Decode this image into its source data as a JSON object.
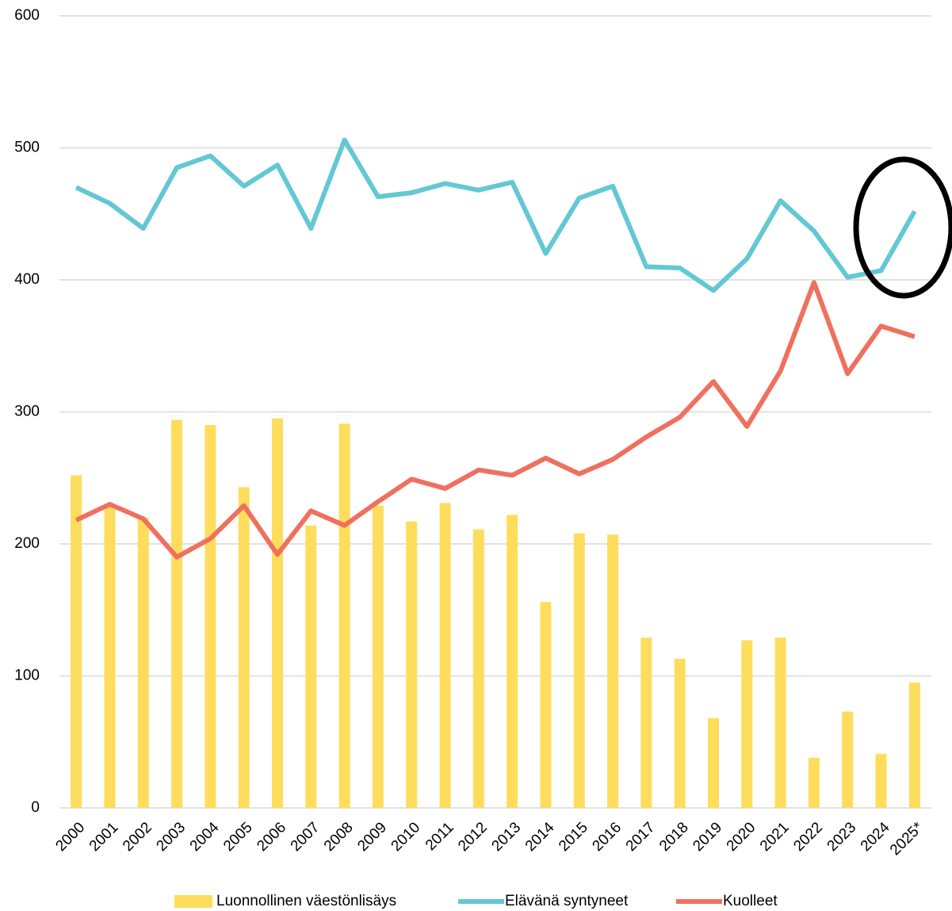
{
  "chart_data": {
    "type": "bar_line",
    "categories": [
      "2000",
      "2001",
      "2002",
      "2003",
      "2004",
      "2005",
      "2006",
      "2007",
      "2008",
      "2009",
      "2010",
      "2011",
      "2012",
      "2013",
      "2014",
      "2015",
      "2016",
      "2017",
      "2018",
      "2019",
      "2020",
      "2021",
      "2022",
      "2023",
      "2024",
      "2025*"
    ],
    "series": [
      {
        "name": "Luonnollinen väestönlisäys",
        "color": "#fedd5c",
        "kind": "bar",
        "values": [
          252,
          228,
          220,
          294,
          290,
          243,
          295,
          214,
          291,
          229,
          217,
          231,
          211,
          222,
          156,
          208,
          207,
          129,
          113,
          68,
          127,
          129,
          38,
          73,
          41,
          95
        ]
      },
      {
        "name": "Elävänä syntyneet",
        "color": "#63c8d4",
        "kind": "line",
        "values": [
          470,
          458,
          439,
          485,
          494,
          471,
          487,
          439,
          506,
          463,
          466,
          473,
          468,
          474,
          420,
          462,
          471,
          410,
          409,
          392,
          416,
          460,
          437,
          402,
          407,
          452
        ]
      },
      {
        "name": "Kuolleet",
        "color": "#f0705f",
        "kind": "line",
        "values": [
          218,
          230,
          219,
          190,
          204,
          229,
          192,
          225,
          214,
          232,
          249,
          242,
          256,
          252,
          265,
          253,
          264,
          281,
          296,
          323,
          289,
          331,
          398,
          329,
          365,
          357
        ]
      }
    ],
    "ylim": [
      0,
      600
    ],
    "yticks": [
      0,
      100,
      200,
      300,
      400,
      500,
      600
    ],
    "grid": true,
    "legend": "bottom"
  }
}
